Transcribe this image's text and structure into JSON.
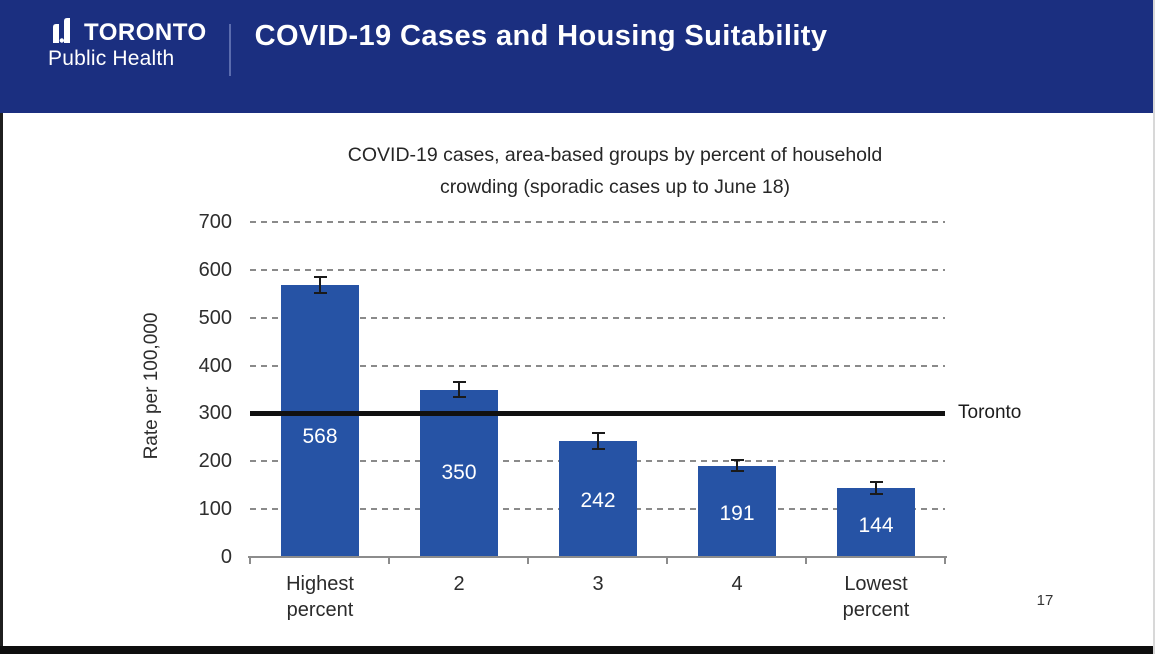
{
  "header": {
    "logo_line1": "TORONTO",
    "logo_line2": "Public Health",
    "title": "COVID-19 Cases and Housing Suitability"
  },
  "footer": {
    "page_number": "17"
  },
  "chart_data": {
    "type": "bar",
    "title": "COVID-19 cases, area-based groups by percent of household crowding (sporadic cases up to June 18)",
    "title_lines": [
      "COVID-19 cases, area-based groups by percent of household",
      "crowding (sporadic cases up to June 18)"
    ],
    "ylabel": "Rate per 100,000",
    "xlabel": "",
    "categories": [
      "Highest percent",
      "2",
      "3",
      "4",
      "Lowest percent"
    ],
    "values": [
      568,
      350,
      242,
      191,
      144
    ],
    "error_margins": [
      17,
      16,
      17,
      12,
      13
    ],
    "yticks": [
      0,
      100,
      200,
      300,
      400,
      500,
      600,
      700
    ],
    "ylim": [
      0,
      700
    ],
    "grid": "horizontal-dashed",
    "legend": "none",
    "reference_line": {
      "label": "Toronto",
      "value": 300
    },
    "bar_color": "#2653a5"
  },
  "colors": {
    "header_bg": "#1b2f80",
    "bar": "#2653a5",
    "reference_line": "#111111",
    "grid": "#8a8a8a",
    "text": "#2e2e2e"
  }
}
